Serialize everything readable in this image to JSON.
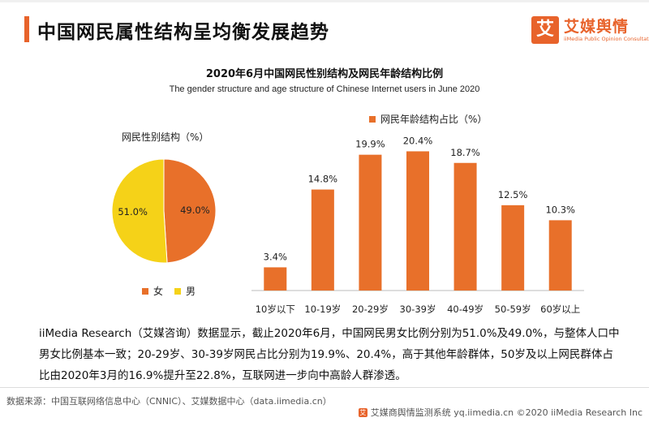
{
  "header": {
    "title": "中国网民属性结构呈均衡发展趋势",
    "logo_mark": "艾",
    "logo_name": "艾媒舆情",
    "logo_sub": "iiMedia Public Opinion Consultation"
  },
  "colors": {
    "accent": "#e8632b",
    "female": "#e8702a",
    "male": "#f5d218"
  },
  "chart_data": [
    {
      "type": "pie",
      "title": "网民性别结构（%）",
      "slices": [
        {
          "label": "女",
          "value": 49.0,
          "display": "49.0%"
        },
        {
          "label": "男",
          "value": 51.0,
          "display": "51.0%"
        }
      ],
      "legend": "bottom"
    },
    {
      "type": "bar",
      "title": "2020年6月中国网民性别结构及网民年龄结构比例",
      "subtitle": "The gender structure and age structure of Chinese Internet users in June 2020",
      "series_name": "网民年龄结构占比（%）",
      "categories": [
        "10岁以下",
        "10-19岁",
        "20-29岁",
        "30-39岁",
        "40-49岁",
        "50-59岁",
        "60岁以上"
      ],
      "values": [
        3.4,
        14.8,
        19.9,
        20.4,
        18.7,
        12.5,
        10.3
      ],
      "value_labels": [
        "3.4%",
        "14.8%",
        "19.9%",
        "20.4%",
        "18.7%",
        "12.5%",
        "10.3%"
      ],
      "ylim": [
        0,
        22
      ],
      "legend": "top"
    }
  ],
  "description": "iiMedia Research（艾媒咨询）数据显示，截止2020年6月，中国网民男女比例分别为51.0%及49.0%，与整体人口中男女比例基本一致；20-29岁、30-39岁网民占比分别为19.9%、20.4%，高于其他年龄群体，50岁及以上网民群体占比由2020年3月的16.9%提升至22.8%，互联网进一步向中高龄人群渗透。",
  "footer": {
    "source": "数据来源：中国互联网络信息中心（CNNIC）、艾媒数据中心（data.iimedia.cn）",
    "copyright": "艾媒商舆情监测系统 yq.iimedia.cn  ©2020  iiMedia Research  Inc"
  }
}
